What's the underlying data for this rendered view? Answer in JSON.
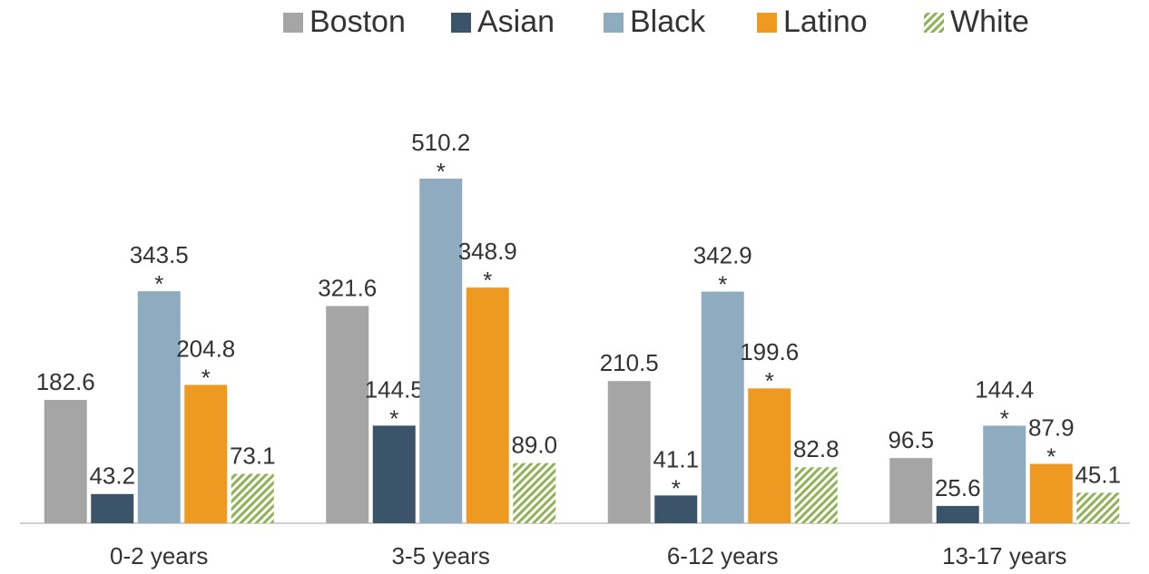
{
  "chart_data": {
    "type": "bar",
    "categories": [
      "0-2 years",
      "3-5 years",
      "6-12 years",
      "13-17 years"
    ],
    "series": [
      {
        "name": "Boston",
        "color": "#a5a5a5",
        "values": [
          182.6,
          321.6,
          210.5,
          96.5
        ],
        "value_labels": [
          "182.6",
          "321.6",
          "210.5",
          "96.5"
        ],
        "annotations": [
          null,
          null,
          null,
          null
        ]
      },
      {
        "name": "Asian",
        "color": "#3b5469",
        "values": [
          43.2,
          144.5,
          41.1,
          25.6
        ],
        "value_labels": [
          "43.2",
          "144.5",
          "41.1",
          "25.6"
        ],
        "annotations": [
          null,
          "*",
          "*",
          null
        ]
      },
      {
        "name": "Black",
        "color": "#8eabc0",
        "values": [
          343.5,
          510.2,
          342.9,
          144.4
        ],
        "value_labels": [
          "343.5",
          "510.2",
          "342.9",
          "144.4"
        ],
        "annotations": [
          "*",
          "*",
          "*",
          "*"
        ]
      },
      {
        "name": "Latino",
        "color": "#ee9a22",
        "values": [
          204.8,
          348.9,
          199.6,
          87.9
        ],
        "value_labels": [
          "204.8",
          "348.9",
          "199.6",
          "87.9"
        ],
        "annotations": [
          "*",
          "*",
          "*",
          "*"
        ]
      },
      {
        "name": "White",
        "color": "#8fb254",
        "pattern": "diagonal",
        "values": [
          73.1,
          89.0,
          82.8,
          45.1
        ],
        "value_labels": [
          "73.1",
          "89.0",
          "82.8",
          "45.1"
        ],
        "annotations": [
          null,
          null,
          null,
          null
        ]
      }
    ],
    "legend": "top"
  }
}
